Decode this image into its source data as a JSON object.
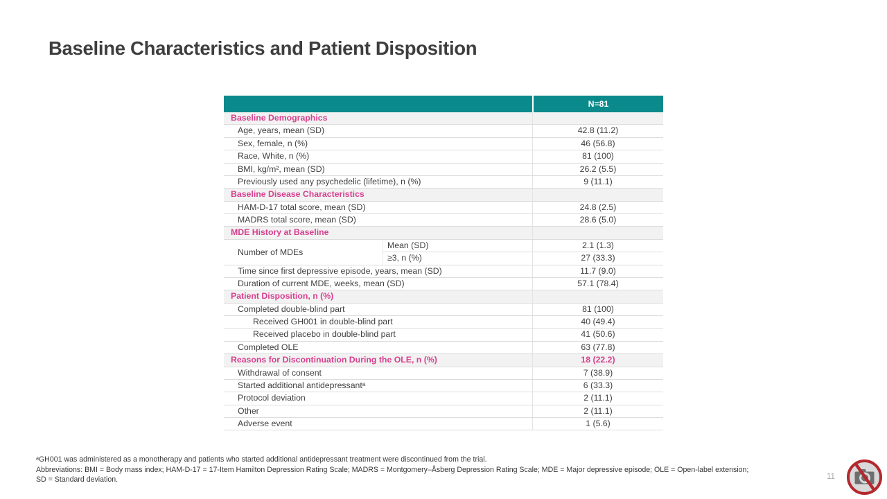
{
  "slide": {
    "title": "Baseline Characteristics and Patient Disposition",
    "page_number": "11"
  },
  "colors": {
    "header_teal": "#0B8A8C",
    "section_pink": "#D6408F",
    "body_text": "#3F3F3F",
    "logo_red": "#B4282E"
  },
  "icons": {
    "corner_logo": "no-image-placeholder-icon"
  },
  "table": {
    "value_header": "N=81",
    "rows": [
      {
        "type": "section",
        "label": "Baseline Demographics",
        "value": ""
      },
      {
        "type": "data",
        "indent": 1,
        "label": "Age, years, mean (SD)",
        "value": "42.8 (11.2)"
      },
      {
        "type": "data",
        "indent": 1,
        "label": "Sex, female, n (%)",
        "value": "46 (56.8)"
      },
      {
        "type": "data",
        "indent": 1,
        "label": "Race, White, n (%)",
        "value": "81 (100)"
      },
      {
        "type": "data",
        "indent": 1,
        "label": "BMI, kg/m², mean (SD)",
        "value": "26.2 (5.5)"
      },
      {
        "type": "data",
        "indent": 1,
        "label": "Previously used any psychedelic (lifetime), n (%)",
        "value": "9 (11.1)"
      },
      {
        "type": "section",
        "label": "Baseline Disease Characteristics",
        "value": ""
      },
      {
        "type": "data",
        "indent": 1,
        "label": "HAM-D-17 total score, mean (SD)",
        "value": "24.8 (2.5)"
      },
      {
        "type": "data",
        "indent": 1,
        "label": "MADRS total score, mean (SD)",
        "value": "28.6 (5.0)"
      },
      {
        "type": "section",
        "label": "MDE History at Baseline",
        "value": ""
      },
      {
        "type": "split",
        "label": "Number of MDEs",
        "subrows": [
          {
            "sublabel": "Mean (SD)",
            "value": "2.1 (1.3)"
          },
          {
            "sublabel": "≥3, n (%)",
            "value": "27 (33.3)"
          }
        ]
      },
      {
        "type": "data",
        "indent": 1,
        "label": "Time since first depressive episode, years, mean (SD)",
        "value": "11.7 (9.0)"
      },
      {
        "type": "data",
        "indent": 1,
        "label": "Duration of current MDE, weeks, mean (SD)",
        "value": "57.1 (78.4)"
      },
      {
        "type": "section",
        "label": "Patient Disposition, n (%)",
        "value": ""
      },
      {
        "type": "data",
        "indent": 1,
        "label": "Completed double-blind part",
        "value": "81 (100)"
      },
      {
        "type": "data",
        "indent": 2,
        "label": "Received GH001 in double-blind part",
        "value": "40 (49.4)"
      },
      {
        "type": "data",
        "indent": 2,
        "label": "Received placebo in double-blind part",
        "value": "41 (50.6)"
      },
      {
        "type": "data",
        "indent": 1,
        "label": "Completed OLE",
        "value": "63 (77.8)"
      },
      {
        "type": "section",
        "label": "Reasons for Discontinuation During the OLE, n (%)",
        "value": "18 (22.2)"
      },
      {
        "type": "data",
        "indent": 1,
        "label": "Withdrawal of consent",
        "value": "7 (38.9)"
      },
      {
        "type": "data",
        "indent": 1,
        "label": "Started additional antidepressantᵃ",
        "value": "6 (33.3)"
      },
      {
        "type": "data",
        "indent": 1,
        "label": "Protocol deviation",
        "value": "2 (11.1)"
      },
      {
        "type": "data",
        "indent": 1,
        "label": "Other",
        "value": "2 (11.1)"
      },
      {
        "type": "data",
        "indent": 1,
        "label": "Adverse event",
        "value": "1 (5.6)"
      }
    ]
  },
  "footnotes": [
    "ᵃGH001 was administered as a monotherapy and patients who started additional antidepressant treatment were discontinued from the trial.",
    "Abbreviations: BMI = Body mass index;  HAM-D-17 = 17-Item Hamilton Depression Rating Scale; MADRS = Montgomery–Åsberg Depression Rating Scale; MDE = Major depressive episode; OLE = Open-label extension;",
    "SD = Standard deviation."
  ]
}
